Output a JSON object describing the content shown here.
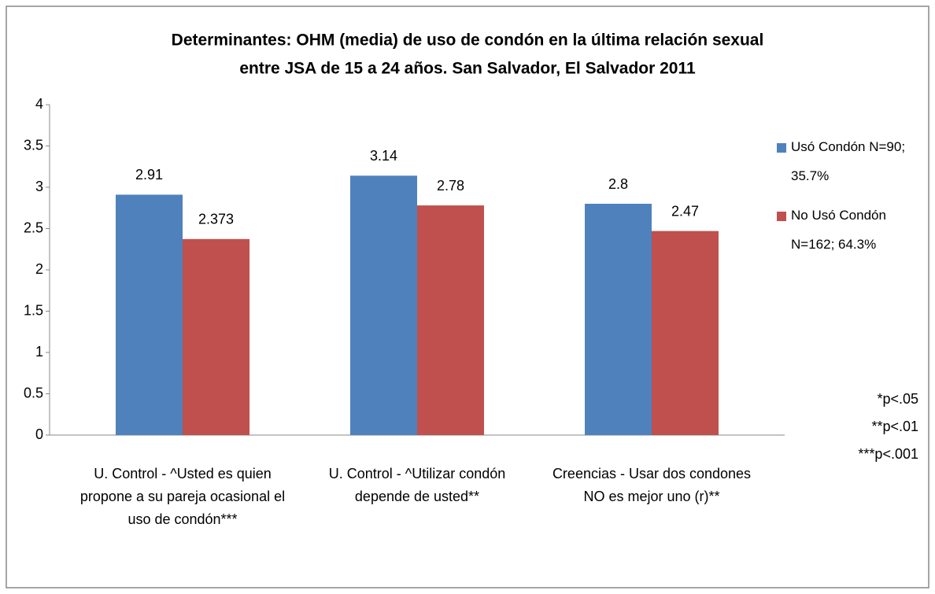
{
  "chart_data": {
    "type": "bar",
    "title": [
      "Determinantes: OHM (media) de uso de condón en la última relación sexual",
      "entre JSA de 15 a 24 años. San Salvador, El Salvador 2011"
    ],
    "categories": [
      "U. Control - ^Usted es quien propone a su pareja ocasional el uso de condón***",
      "U. Control  - ^Utilizar condón depende de usted**",
      "Creencias - Usar dos condones NO es mejor uno (r)**"
    ],
    "series": [
      {
        "name": "Usó Condón N=90; 35.7%",
        "color": "#4f81bd",
        "values": [
          2.91,
          3.14,
          2.8
        ]
      },
      {
        "name": "No Usó Condón N=162; 64.3%",
        "color": "#c0504d",
        "values": [
          2.373,
          2.78,
          2.47
        ]
      }
    ],
    "ylim": [
      0,
      4
    ],
    "yticks": [
      0,
      0.5,
      1,
      1.5,
      2,
      2.5,
      3,
      3.5,
      4
    ],
    "annotations": [
      "*p<.05",
      "**p<.01",
      "***p<.001"
    ],
    "legend": "right"
  }
}
